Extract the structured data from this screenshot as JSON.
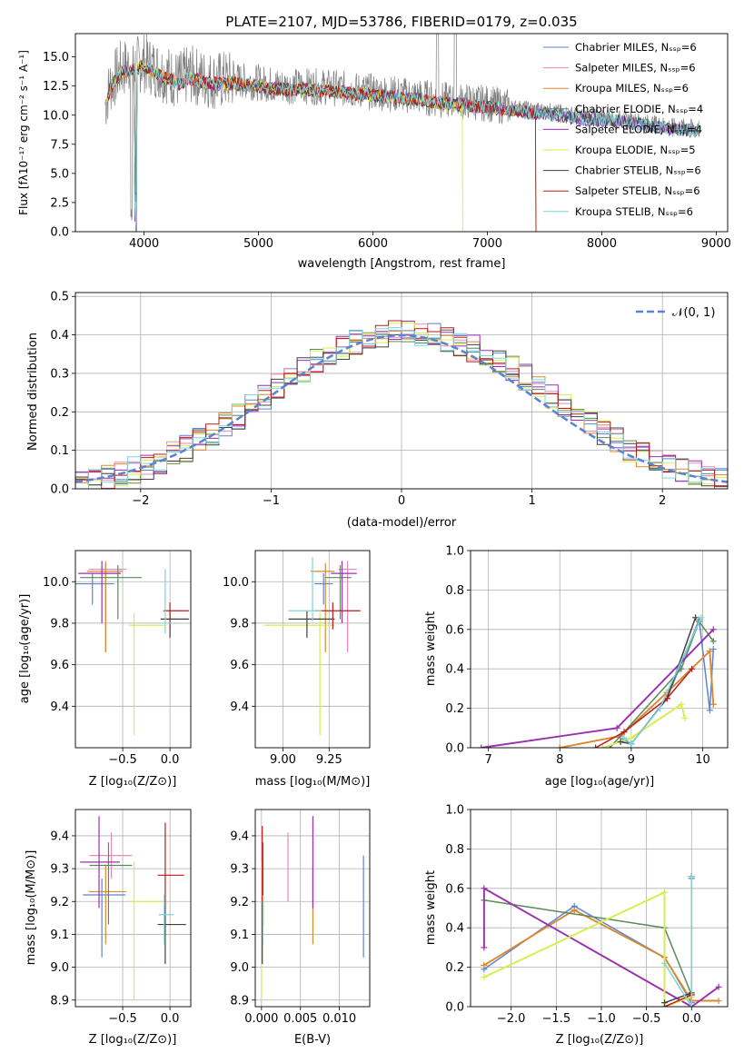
{
  "colors": [
    "#5b84d6",
    "#e889b8",
    "#d98a2c",
    "#5a8a5a",
    "#9b2fb0",
    "#d8ec4a",
    "#404040",
    "#c01818",
    "#7fd6d6"
  ],
  "chart_data": [
    {
      "id": "spectrum",
      "type": "line",
      "title": "PLATE=2107, MJD=53786, FIBERID=0179, z=0.035",
      "xlabel": "wavelength [Angstrom, rest frame]",
      "ylabel": "Flux [fλ10⁻¹⁷ erg cm⁻² s⁻¹ A⁻¹]",
      "xlim": [
        3400,
        9100
      ],
      "ylim": [
        0,
        17
      ],
      "xticks": [
        4000,
        5000,
        6000,
        7000,
        8000,
        9000
      ],
      "yticks": [
        0.0,
        2.5,
        5.0,
        7.5,
        10.0,
        12.5,
        15.0
      ],
      "data_series": {
        "name": "",
        "x": [
          3650,
          3700,
          3800,
          3900,
          4000,
          4100,
          4200,
          4300,
          4400,
          4500,
          4600,
          4800,
          5000,
          5200,
          5400,
          5600,
          5800,
          6000,
          6200,
          6400,
          6600,
          6800,
          7000,
          7200,
          7400,
          7600,
          7800,
          8000,
          8200,
          8400,
          8600,
          8800
        ],
        "y": [
          10.5,
          12.5,
          14.0,
          14.2,
          14.5,
          14.0,
          13.5,
          13.0,
          13.5,
          13.2,
          13.0,
          13.0,
          12.8,
          12.5,
          12.5,
          12.4,
          12.2,
          12.0,
          11.8,
          11.6,
          11.3,
          11.2,
          11.0,
          10.7,
          10.5,
          10.3,
          10.0,
          9.9,
          9.7,
          9.4,
          9.1,
          9.0
        ]
      },
      "legend": [
        "Chabrier MILES, Nₛₛₚ=6",
        "Salpeter MILES, Nₛₛₚ=6",
        "Kroupa MILES, Nₛₛₚ=6",
        "Chabrier ELODIE, Nₛₛₚ=4",
        "Salpeter ELODIE, Nₛₛₚ=4",
        "Kroupa ELODIE, Nₛₛₚ=5",
        "Chabrier STELIB, Nₛₛₚ=6",
        "Salpeter STELIB, Nₛₛₚ=6",
        "Kroupa STELIB, Nₛₛₚ=6"
      ],
      "legend_position": "top-right",
      "grid": false
    },
    {
      "id": "residuals",
      "type": "line",
      "xlabel": "(data-model)/error",
      "ylabel": "Normed distribution",
      "xlim": [
        -2.5,
        2.5
      ],
      "ylim": [
        0,
        0.51
      ],
      "xticks": [
        -2,
        -1,
        0,
        1,
        2
      ],
      "yticks": [
        0.0,
        0.1,
        0.2,
        0.3,
        0.4,
        0.5
      ],
      "bin_width": 0.1,
      "hist_base": [
        0.02,
        0.025,
        0.03,
        0.038,
        0.048,
        0.058,
        0.072,
        0.088,
        0.105,
        0.124,
        0.145,
        0.168,
        0.19,
        0.215,
        0.24,
        0.265,
        0.29,
        0.31,
        0.33,
        0.35,
        0.365,
        0.38,
        0.39,
        0.4,
        0.405,
        0.41,
        0.405,
        0.4,
        0.39,
        0.378,
        0.365,
        0.35,
        0.33,
        0.31,
        0.29,
        0.265,
        0.24,
        0.215,
        0.19,
        0.168,
        0.145,
        0.124,
        0.105,
        0.088,
        0.072,
        0.058,
        0.048,
        0.038,
        0.03,
        0.025
      ],
      "gaussian_label": "𝒩(0, 1)",
      "legend_position": "top-right",
      "grid": true
    },
    {
      "id": "age-vs-z",
      "type": "scatter",
      "xlabel": "Z [log₁₀(Z/Z⊙)]",
      "ylabel": "age  [log₁₀(age/yr)]",
      "xlim": [
        -1.0,
        0.22
      ],
      "ylim": [
        9.2,
        10.15
      ],
      "xticks": [
        -0.5,
        0.0
      ],
      "yticks": [
        9.4,
        9.6,
        9.8,
        10.0
      ],
      "points": [
        {
          "x": -0.82,
          "y": 9.99,
          "xerr": [
            0.25,
            0.23
          ],
          "yerr": [
            0.1,
            0.05
          ]
        },
        {
          "x": -0.68,
          "y": 10.06,
          "xerr": [
            0.18,
            0.22
          ],
          "yerr": [
            0.4,
            0.04
          ]
        },
        {
          "x": -0.68,
          "y": 10.05,
          "xerr": [
            0.2,
            0.18
          ],
          "yerr": [
            0.39,
            0.04
          ]
        },
        {
          "x": -0.55,
          "y": 10.02,
          "xerr": [
            0.4,
            0.25
          ],
          "yerr": [
            0.2,
            0.06
          ]
        },
        {
          "x": -0.72,
          "y": 10.04,
          "xerr": [
            0.25,
            0.2
          ],
          "yerr": [
            0.24,
            0.06
          ]
        },
        {
          "x": -0.38,
          "y": 9.79,
          "xerr": [
            0.05,
            0.32
          ],
          "yerr": [
            0.53,
            0.06
          ]
        },
        {
          "x": 0.0,
          "y": 9.82,
          "xerr": [
            0.1,
            0.2
          ],
          "yerr": [
            0.09,
            0.04
          ]
        },
        {
          "x": 0.0,
          "y": 9.86,
          "xerr": [
            0.07,
            0.2
          ],
          "yerr": [
            0.09,
            0.04
          ]
        },
        {
          "x": -0.05,
          "y": 9.8,
          "xerr": [
            0.08,
            0.12
          ],
          "yerr": [
            0.05,
            0.26
          ]
        }
      ],
      "grid": true
    },
    {
      "id": "age-vs-mass",
      "type": "scatter",
      "xlabel": "mass [log₁₀(M/M⊙)]",
      "ylabel": "",
      "xlim": [
        8.85,
        9.47
      ],
      "ylim": [
        9.2,
        10.15
      ],
      "xticks": [
        9.0,
        9.25
      ],
      "yticks": [
        9.4,
        9.6,
        9.8,
        10.0
      ],
      "points": [
        {
          "x": 9.22,
          "y": 9.99,
          "xerr": [
            0.05,
            0.05
          ],
          "yerr": [
            0.1,
            0.05
          ]
        },
        {
          "x": 9.35,
          "y": 10.06,
          "xerr": [
            0.05,
            0.05
          ],
          "yerr": [
            0.4,
            0.04
          ]
        },
        {
          "x": 9.23,
          "y": 10.05,
          "xerr": [
            0.08,
            0.05
          ],
          "yerr": [
            0.39,
            0.04
          ]
        },
        {
          "x": 9.31,
          "y": 10.02,
          "xerr": [
            0.08,
            0.06
          ],
          "yerr": [
            0.2,
            0.06
          ]
        },
        {
          "x": 9.32,
          "y": 10.04,
          "xerr": [
            0.06,
            0.08
          ],
          "yerr": [
            0.24,
            0.06
          ]
        },
        {
          "x": 9.2,
          "y": 9.79,
          "xerr": [
            0.3,
            0.08
          ],
          "yerr": [
            0.53,
            0.06
          ]
        },
        {
          "x": 9.13,
          "y": 9.82,
          "xerr": [
            0.1,
            0.15
          ],
          "yerr": [
            0.09,
            0.04
          ]
        },
        {
          "x": 9.27,
          "y": 9.86,
          "xerr": [
            0.1,
            0.15
          ],
          "yerr": [
            0.09,
            0.04
          ]
        },
        {
          "x": 9.16,
          "y": 9.86,
          "xerr": [
            0.13,
            0.05
          ],
          "yerr": [
            0.05,
            0.26
          ]
        }
      ],
      "grid": true
    },
    {
      "id": "mass-weight-vs-age",
      "type": "line",
      "xlabel": "age  [log₁₀(age/yr)]",
      "ylabel": "mass weight",
      "xlim": [
        6.75,
        10.35
      ],
      "ylim": [
        0,
        1.0
      ],
      "xticks": [
        7,
        8,
        9,
        10
      ],
      "yticks": [
        0.0,
        0.2,
        0.4,
        0.6,
        0.8,
        1.0
      ],
      "series": [
        {
          "x": [
            8.85,
            9.0,
            9.5,
            9.95,
            10.1,
            10.15
          ],
          "y": [
            0.05,
            0.02,
            0.25,
            0.65,
            0.19,
            0.5
          ]
        },
        {
          "x": [
            8.0,
            8.85,
            9.5,
            10.1,
            10.15
          ],
          "y": [
            0.0,
            0.06,
            0.28,
            0.49,
            0.22
          ]
        },
        {
          "x": [
            8.0,
            8.85,
            9.5,
            10.1,
            10.15
          ],
          "y": [
            0.0,
            0.06,
            0.28,
            0.49,
            0.22
          ]
        },
        {
          "x": [
            8.7,
            9.7,
            9.95,
            10.15
          ],
          "y": [
            0.0,
            0.4,
            0.64,
            0.54
          ]
        },
        {
          "x": [
            6.9,
            8.8,
            10.15
          ],
          "y": [
            0.0,
            0.1,
            0.6
          ]
        },
        {
          "x": [
            8.6,
            9.0,
            9.7,
            9.75
          ],
          "y": [
            0.0,
            0.05,
            0.22,
            0.15
          ]
        },
        {
          "x": [
            8.85,
            9.0,
            9.5,
            9.9
          ],
          "y": [
            0.03,
            0.02,
            0.25,
            0.66
          ]
        },
        {
          "x": [
            8.5,
            8.9,
            9.5,
            9.85
          ],
          "y": [
            0.0,
            0.08,
            0.25,
            0.4
          ]
        },
        {
          "x": [
            8.9,
            9.0,
            9.4,
            9.98
          ],
          "y": [
            0.05,
            0.02,
            0.2,
            0.66
          ]
        }
      ],
      "grid": true
    },
    {
      "id": "mass-vs-z",
      "type": "scatter",
      "xlabel": "Z [log₁₀(Z/Z⊙)]",
      "ylabel": "mass [log₁₀(M/M⊙)]",
      "xlim": [
        -1.0,
        0.22
      ],
      "ylim": [
        8.88,
        9.48
      ],
      "xticks": [
        -0.5,
        0.0
      ],
      "yticks": [
        8.9,
        9.0,
        9.1,
        9.2,
        9.3,
        9.4
      ],
      "points": [
        {
          "x": -0.72,
          "y": 9.22,
          "xerr": [
            0.2,
            0.25
          ],
          "yerr": [
            0.19,
            0.05
          ]
        },
        {
          "x": -0.62,
          "y": 9.34,
          "xerr": [
            0.23,
            0.22
          ],
          "yerr": [
            0.07,
            0.07
          ]
        },
        {
          "x": -0.68,
          "y": 9.23,
          "xerr": [
            0.18,
            0.22
          ],
          "yerr": [
            0.16,
            0.08
          ]
        },
        {
          "x": -0.65,
          "y": 9.31,
          "xerr": [
            0.2,
            0.25
          ],
          "yerr": [
            0.18,
            0.07
          ]
        },
        {
          "x": -0.75,
          "y": 9.32,
          "xerr": [
            0.2,
            0.22
          ],
          "yerr": [
            0.14,
            0.14
          ]
        },
        {
          "x": -0.38,
          "y": 9.2,
          "xerr": [
            0.05,
            0.3
          ],
          "yerr": [
            0.3,
            0.12
          ]
        },
        {
          "x": -0.05,
          "y": 9.13,
          "xerr": [
            0.08,
            0.22
          ],
          "yerr": [
            0.12,
            0.08
          ]
        },
        {
          "x": -0.05,
          "y": 9.28,
          "xerr": [
            0.08,
            0.2
          ],
          "yerr": [
            0.1,
            0.16
          ]
        },
        {
          "x": -0.06,
          "y": 9.16,
          "xerr": [
            0.06,
            0.1
          ],
          "yerr": [
            0.09,
            0.06
          ]
        }
      ],
      "grid": true
    },
    {
      "id": "mass-vs-ebv",
      "type": "scatter",
      "xlabel": "E(B-V)",
      "ylabel": "",
      "xlim": [
        -0.0008,
        0.0139
      ],
      "ylim": [
        8.88,
        9.48
      ],
      "xticks": [
        0.0,
        0.005,
        0.01
      ],
      "yticks": [
        8.9,
        9.0,
        9.1,
        9.2,
        9.3,
        9.4
      ],
      "points": [
        {
          "x": 0.0131,
          "y": 9.22,
          "xerr": [
            0,
            0
          ],
          "yerr": [
            0.19,
            0.12
          ]
        },
        {
          "x": 0.0034,
          "y": 9.34,
          "xerr": [
            0,
            0
          ],
          "yerr": [
            0.14,
            0.07
          ]
        },
        {
          "x": 0.0066,
          "y": 9.23,
          "xerr": [
            0,
            0
          ],
          "yerr": [
            0.16,
            0.08
          ]
        },
        {
          "x": 0.0002,
          "y": 9.31,
          "xerr": [
            0,
            0
          ],
          "yerr": [
            0.18,
            0.07
          ]
        },
        {
          "x": 0.0066,
          "y": 9.32,
          "xerr": [
            0,
            0
          ],
          "yerr": [
            0.14,
            0.14
          ]
        },
        {
          "x": 0.0,
          "y": 9.2,
          "xerr": [
            0,
            0
          ],
          "yerr": [
            0.3,
            0.12
          ]
        },
        {
          "x": 0.0001,
          "y": 9.13,
          "xerr": [
            0,
            0
          ],
          "yerr": [
            0.12,
            0.08
          ]
        },
        {
          "x": 0.0001,
          "y": 9.33,
          "xerr": [
            0,
            0
          ],
          "yerr": [
            0.13,
            0.1
          ]
        },
        {
          "x": 0.0002,
          "y": 9.16,
          "xerr": [
            0,
            0
          ],
          "yerr": [
            0.09,
            0.06
          ]
        }
      ],
      "grid": true
    },
    {
      "id": "mass-weight-vs-z",
      "type": "line",
      "xlabel": "Z [log₁₀(Z/Z⊙)]",
      "ylabel": "mass weight",
      "xlim": [
        -2.45,
        0.4
      ],
      "ylim": [
        0,
        1.0
      ],
      "xticks": [
        -2.0,
        -1.5,
        -1.0,
        -0.5,
        0.0
      ],
      "yticks": [
        0.0,
        0.2,
        0.4,
        0.6,
        0.8,
        1.0
      ],
      "series": [
        {
          "x": [
            -2.3,
            -1.3,
            -0.3,
            0.0,
            0.0
          ],
          "y": [
            0.19,
            0.51,
            0.25,
            0.02,
            0.65
          ]
        },
        {
          "x": [
            -2.3,
            -1.3,
            -0.3,
            0.0
          ],
          "y": [
            0.21,
            0.49,
            0.25,
            0.03
          ]
        },
        {
          "x": [
            -2.3,
            -1.3,
            -0.3,
            0.0,
            0.3
          ],
          "y": [
            0.21,
            0.49,
            0.25,
            0.03,
            0.03
          ]
        },
        {
          "x": [
            -2.3,
            -0.3,
            0.0
          ],
          "y": [
            0.54,
            0.4,
            0.06
          ]
        },
        {
          "x": [
            -2.3,
            -2.3,
            0.0,
            0.3
          ],
          "y": [
            0.3,
            0.6,
            0.0,
            0.1
          ]
        },
        {
          "x": [
            -2.3,
            -0.3,
            -0.3,
            0.0
          ],
          "y": [
            0.15,
            0.58,
            0.0,
            0.05
          ]
        },
        {
          "x": [
            -0.3,
            0.0,
            0.0
          ],
          "y": [
            0.02,
            0.07,
            0.66
          ]
        },
        {
          "x": [
            -0.3,
            0.0
          ],
          "y": [
            0.0,
            0.06
          ]
        },
        {
          "x": [
            -0.3,
            0.0,
            0.0
          ],
          "y": [
            0.22,
            0.0,
            0.66
          ]
        }
      ],
      "grid": true
    }
  ]
}
